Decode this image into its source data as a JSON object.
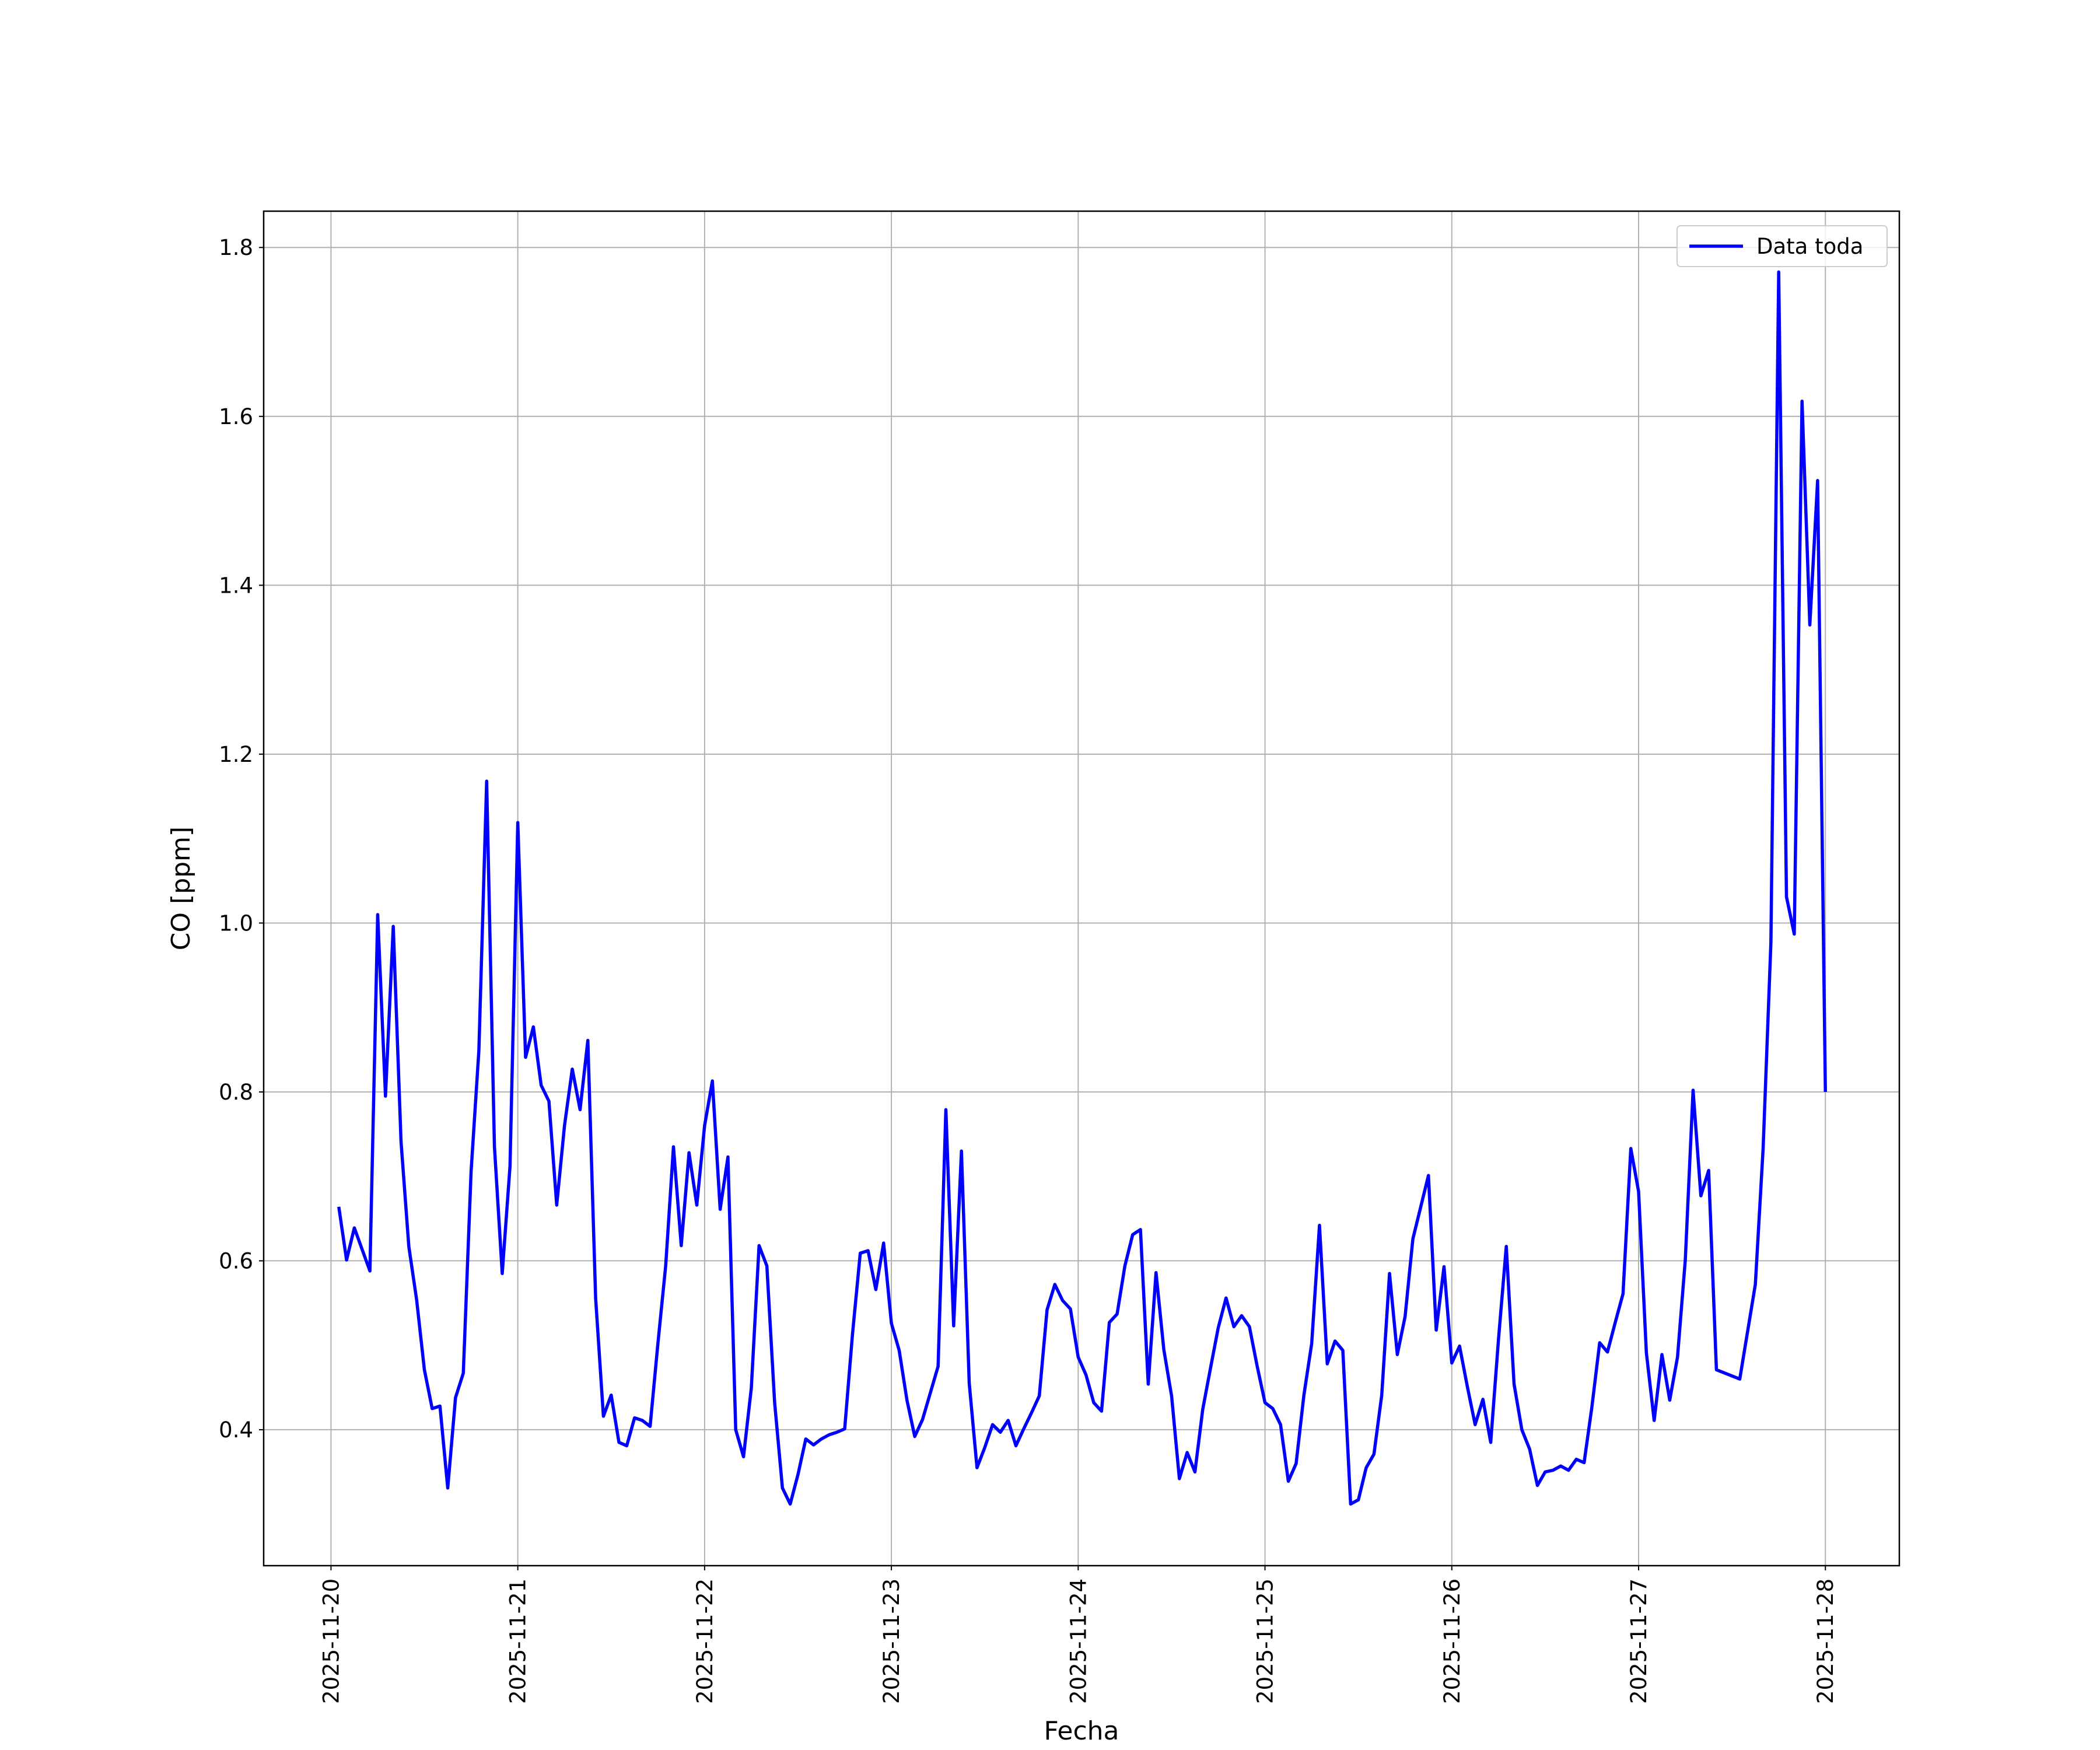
{
  "chart_data": {
    "type": "line",
    "xlabel": "Fecha",
    "ylabel": "CO [ppm]",
    "xlim": [
      "2025-11-19T15:21",
      "2025-11-28T09:30"
    ],
    "xticks": [
      "2025-11-20",
      "2025-11-21",
      "2025-11-22",
      "2025-11-23",
      "2025-11-24",
      "2025-11-25",
      "2025-11-26",
      "2025-11-27",
      "2025-11-28"
    ],
    "ylim": [
      0.239,
      1.843
    ],
    "yticks": [
      0.4,
      0.6,
      0.8,
      {
        "value": 1,
        "label": "1.0"
      },
      1.2,
      1.4,
      1.6,
      1.8
    ],
    "grid": true,
    "legend": "upper right",
    "x": [
      "2025-11-20T01:00",
      "2025-11-20T02:00",
      "2025-11-20T03:00",
      "2025-11-20T05:00",
      "2025-11-20T06:00",
      "2025-11-20T07:00",
      "2025-11-20T08:00",
      "2025-11-20T09:00",
      "2025-11-20T10:00",
      "2025-11-20T11:00",
      "2025-11-20T12:00",
      "2025-11-20T13:00",
      "2025-11-20T14:00",
      "2025-11-20T15:00",
      "2025-11-20T16:00",
      "2025-11-20T17:00",
      "2025-11-20T18:00",
      "2025-11-20T19:00",
      "2025-11-20T20:00",
      "2025-11-20T21:00",
      "2025-11-20T22:00",
      "2025-11-20T23:00",
      "2025-11-21T00:00",
      "2025-11-21T01:00",
      "2025-11-21T02:00",
      "2025-11-21T03:00",
      "2025-11-21T04:00",
      "2025-11-21T05:00",
      "2025-11-21T06:00",
      "2025-11-21T07:00",
      "2025-11-21T08:00",
      "2025-11-21T09:00",
      "2025-11-21T10:00",
      "2025-11-21T11:00",
      "2025-11-21T12:00",
      "2025-11-21T13:00",
      "2025-11-21T14:00",
      "2025-11-21T15:00",
      "2025-11-21T16:00",
      "2025-11-21T17:00",
      "2025-11-21T18:00",
      "2025-11-21T19:00",
      "2025-11-21T20:00",
      "2025-11-21T21:00",
      "2025-11-21T22:00",
      "2025-11-21T23:00",
      "2025-11-22T00:00",
      "2025-11-22T01:00",
      "2025-11-22T02:00",
      "2025-11-22T03:00",
      "2025-11-22T04:00",
      "2025-11-22T05:00",
      "2025-11-22T06:00",
      "2025-11-22T07:00",
      "2025-11-22T08:00",
      "2025-11-22T09:00",
      "2025-11-22T10:00",
      "2025-11-22T11:00",
      "2025-11-22T12:00",
      "2025-11-22T13:00",
      "2025-11-22T14:00",
      "2025-11-22T15:00",
      "2025-11-22T16:00",
      "2025-11-22T17:00",
      "2025-11-22T18:00",
      "2025-11-22T19:00",
      "2025-11-22T20:00",
      "2025-11-22T21:00",
      "2025-11-22T22:00",
      "2025-11-22T23:00",
      "2025-11-23T00:00",
      "2025-11-23T01:00",
      "2025-11-23T02:00",
      "2025-11-23T03:00",
      "2025-11-23T04:00",
      "2025-11-23T06:00",
      "2025-11-23T07:00",
      "2025-11-23T08:00",
      "2025-11-23T09:00",
      "2025-11-23T10:00",
      "2025-11-23T11:00",
      "2025-11-23T12:00",
      "2025-11-23T13:00",
      "2025-11-23T14:00",
      "2025-11-23T15:00",
      "2025-11-23T16:00",
      "2025-11-23T17:00",
      "2025-11-23T18:00",
      "2025-11-23T19:00",
      "2025-11-23T20:00",
      "2025-11-23T21:00",
      "2025-11-23T22:00",
      "2025-11-23T23:00",
      "2025-11-24T00:00",
      "2025-11-24T01:00",
      "2025-11-24T02:00",
      "2025-11-24T03:00",
      "2025-11-24T04:00",
      "2025-11-24T05:00",
      "2025-11-24T06:00",
      "2025-11-24T07:00",
      "2025-11-24T08:00",
      "2025-11-24T09:00",
      "2025-11-24T10:00",
      "2025-11-24T11:00",
      "2025-11-24T12:00",
      "2025-11-24T13:00",
      "2025-11-24T14:00",
      "2025-11-24T15:00",
      "2025-11-24T16:00",
      "2025-11-24T17:00",
      "2025-11-24T18:00",
      "2025-11-24T19:00",
      "2025-11-24T20:00",
      "2025-11-24T21:00",
      "2025-11-24T22:00",
      "2025-11-24T23:00",
      "2025-11-25T00:00",
      "2025-11-25T01:00",
      "2025-11-25T02:00",
      "2025-11-25T03:00",
      "2025-11-25T04:00",
      "2025-11-25T05:00",
      "2025-11-25T06:00",
      "2025-11-25T07:00",
      "2025-11-25T08:00",
      "2025-11-25T09:00",
      "2025-11-25T10:00",
      "2025-11-25T11:00",
      "2025-11-25T12:00",
      "2025-11-25T13:00",
      "2025-11-25T14:00",
      "2025-11-25T15:00",
      "2025-11-25T16:00",
      "2025-11-25T17:00",
      "2025-11-25T18:00",
      "2025-11-25T19:00",
      "2025-11-25T21:00",
      "2025-11-25T22:00",
      "2025-11-25T23:00",
      "2025-11-26T00:00",
      "2025-11-26T01:00",
      "2025-11-26T02:00",
      "2025-11-26T03:00",
      "2025-11-26T04:00",
      "2025-11-26T05:00",
      "2025-11-26T06:00",
      "2025-11-26T07:00",
      "2025-11-26T08:00",
      "2025-11-26T09:00",
      "2025-11-26T10:00",
      "2025-11-26T11:00",
      "2025-11-26T12:00",
      "2025-11-26T13:00",
      "2025-11-26T14:00",
      "2025-11-26T15:00",
      "2025-11-26T16:00",
      "2025-11-26T17:00",
      "2025-11-26T18:00",
      "2025-11-26T19:00",
      "2025-11-26T20:00",
      "2025-11-26T21:00",
      "2025-11-26T22:00",
      "2025-11-26T23:00",
      "2025-11-27T00:00",
      "2025-11-27T01:00",
      "2025-11-27T02:00",
      "2025-11-27T03:00",
      "2025-11-27T04:00",
      "2025-11-27T05:00",
      "2025-11-27T06:00",
      "2025-11-27T07:00",
      "2025-11-27T08:00",
      "2025-11-27T09:00",
      "2025-11-27T10:00",
      "2025-11-27T13:00",
      "2025-11-27T15:00",
      "2025-11-27T16:00",
      "2025-11-27T17:00",
      "2025-11-27T18:00",
      "2025-11-27T19:00",
      "2025-11-27T20:00",
      "2025-11-27T21:00",
      "2025-11-27T22:00",
      "2025-11-27T23:00",
      "2025-11-28T00:00"
    ],
    "series": [
      {
        "name": "Data toda",
        "color": "#0000ff",
        "values": [
          0.664,
          0.601,
          0.639,
          0.588,
          1.01,
          0.795,
          0.996,
          0.741,
          0.617,
          0.554,
          0.471,
          0.425,
          0.428,
          0.331,
          0.438,
          0.467,
          0.706,
          0.849,
          1.168,
          0.735,
          0.585,
          0.712,
          1.119,
          0.841,
          0.877,
          0.808,
          0.789,
          0.666,
          0.76,
          0.827,
          0.779,
          0.861,
          0.556,
          0.416,
          0.441,
          0.385,
          0.381,
          0.414,
          0.411,
          0.404,
          0.502,
          0.594,
          0.735,
          0.618,
          0.728,
          0.666,
          0.76,
          0.813,
          0.661,
          0.723,
          0.4,
          0.368,
          0.449,
          0.618,
          0.594,
          0.432,
          0.331,
          0.312,
          0.347,
          0.389,
          0.382,
          0.389,
          0.394,
          0.397,
          0.401,
          0.513,
          0.609,
          0.612,
          0.566,
          0.621,
          0.526,
          0.494,
          0.435,
          0.392,
          0.412,
          0.475,
          0.779,
          0.523,
          0.73,
          0.455,
          0.355,
          0.379,
          0.406,
          0.397,
          0.411,
          0.381,
          0.401,
          0.42,
          0.44,
          0.542,
          0.572,
          0.553,
          0.543,
          0.486,
          0.465,
          0.432,
          0.422,
          0.527,
          0.537,
          0.594,
          0.631,
          0.637,
          0.454,
          0.586,
          0.495,
          0.44,
          0.342,
          0.373,
          0.35,
          0.424,
          0.473,
          0.521,
          0.556,
          0.522,
          0.535,
          0.522,
          0.475,
          0.432,
          0.425,
          0.406,
          0.339,
          0.36,
          0.441,
          0.502,
          0.642,
          0.478,
          0.505,
          0.494,
          0.312,
          0.317,
          0.355,
          0.371,
          0.441,
          0.585,
          0.489,
          0.534,
          0.626,
          0.701,
          0.518,
          0.593,
          0.479,
          0.499,
          0.451,
          0.406,
          0.436,
          0.385,
          0.507,
          0.617,
          0.454,
          0.4,
          0.377,
          0.334,
          0.35,
          0.352,
          0.357,
          0.352,
          0.365,
          0.361,
          0.427,
          0.503,
          0.492,
          0.527,
          0.561,
          0.733,
          0.682,
          0.491,
          0.411,
          0.489,
          0.435,
          0.486,
          0.601,
          0.802,
          0.677,
          0.707,
          0.471,
          0.46,
          0.572,
          0.733,
          0.977,
          1.771,
          1.031,
          0.987,
          1.618,
          1.353,
          1.524,
          0.8
        ]
      }
    ]
  }
}
